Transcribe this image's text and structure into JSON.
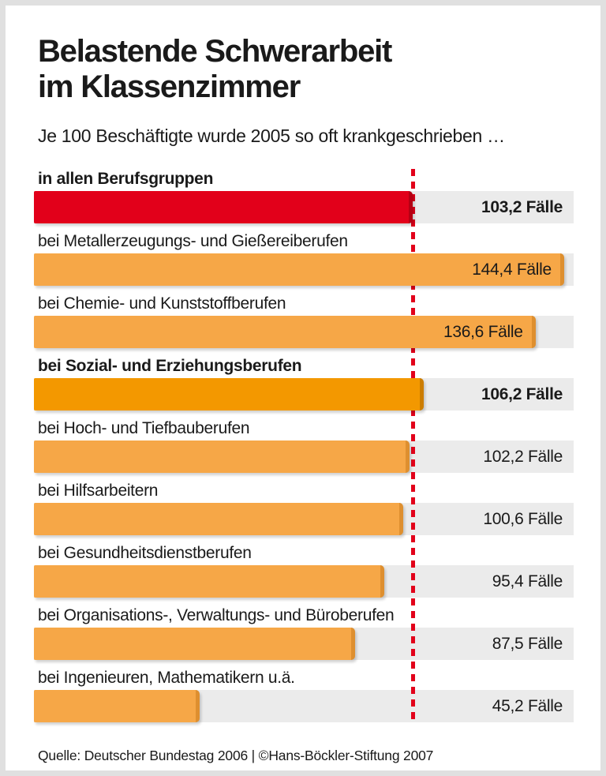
{
  "page": {
    "title_line1": "Belastende Schwerarbeit",
    "title_line2": "im Klassenzimmer",
    "subtitle": "Je 100 Beschäftigte wurde 2005 so oft krankgeschrieben …",
    "source": "Quelle: Deutscher Bundestag 2006 | ©Hans-Böckler-Stiftung 2007"
  },
  "colors": {
    "red": "#e2001a",
    "red_edge": "#b50013",
    "orange": "#f6a747",
    "orange_edge": "#de8f2f",
    "orange_dark": "#f39800",
    "orange_dark_edge": "#cc7d00",
    "track": "#ebebeb",
    "text": "#1a1a1a",
    "reference_line": "#e2001a",
    "frame": "#e0e0e0"
  },
  "chart_data": {
    "type": "bar",
    "orientation": "horizontal",
    "title": "Belastende Schwerarbeit im Klassenzimmer",
    "subtitle": "Je 100 Beschäftigte wurde 2005 so oft krankgeschrieben …",
    "categories": [
      "in allen Berufsgruppen",
      "bei Metallerzeugungs- und Gießereiberufen",
      "bei Chemie- und Kunststoffberufen",
      "bei Sozial- und Erziehungsberufen",
      "bei Hoch- und Tiefbauberufen",
      "bei Hilfsarbeitern",
      "bei Gesundheitsdienstberufen",
      "bei Organisations-, Verwaltungs- und Büroberufen",
      "bei Ingenieuren, Mathematikern u.ä."
    ],
    "values": [
      103.2,
      144.4,
      136.6,
      106.2,
      102.2,
      100.6,
      95.4,
      87.5,
      45.2
    ],
    "value_labels": [
      "103,2 Fälle",
      "144,4 Fälle",
      "136,6 Fälle",
      "106,2 Fälle",
      "102,2 Fälle",
      "100,6 Fälle",
      "95,4 Fälle",
      "87,5 Fälle",
      "45,2 Fälle"
    ],
    "emphasized": [
      true,
      false,
      false,
      true,
      false,
      false,
      false,
      false,
      false
    ],
    "bar_colors": [
      "red",
      "orange",
      "orange",
      "orange_dark",
      "orange",
      "orange",
      "orange",
      "orange",
      "orange"
    ],
    "xlim": [
      0,
      147
    ],
    "reference_line": {
      "value": 103.2,
      "style": "dotted"
    },
    "grid": false,
    "legend": false
  }
}
